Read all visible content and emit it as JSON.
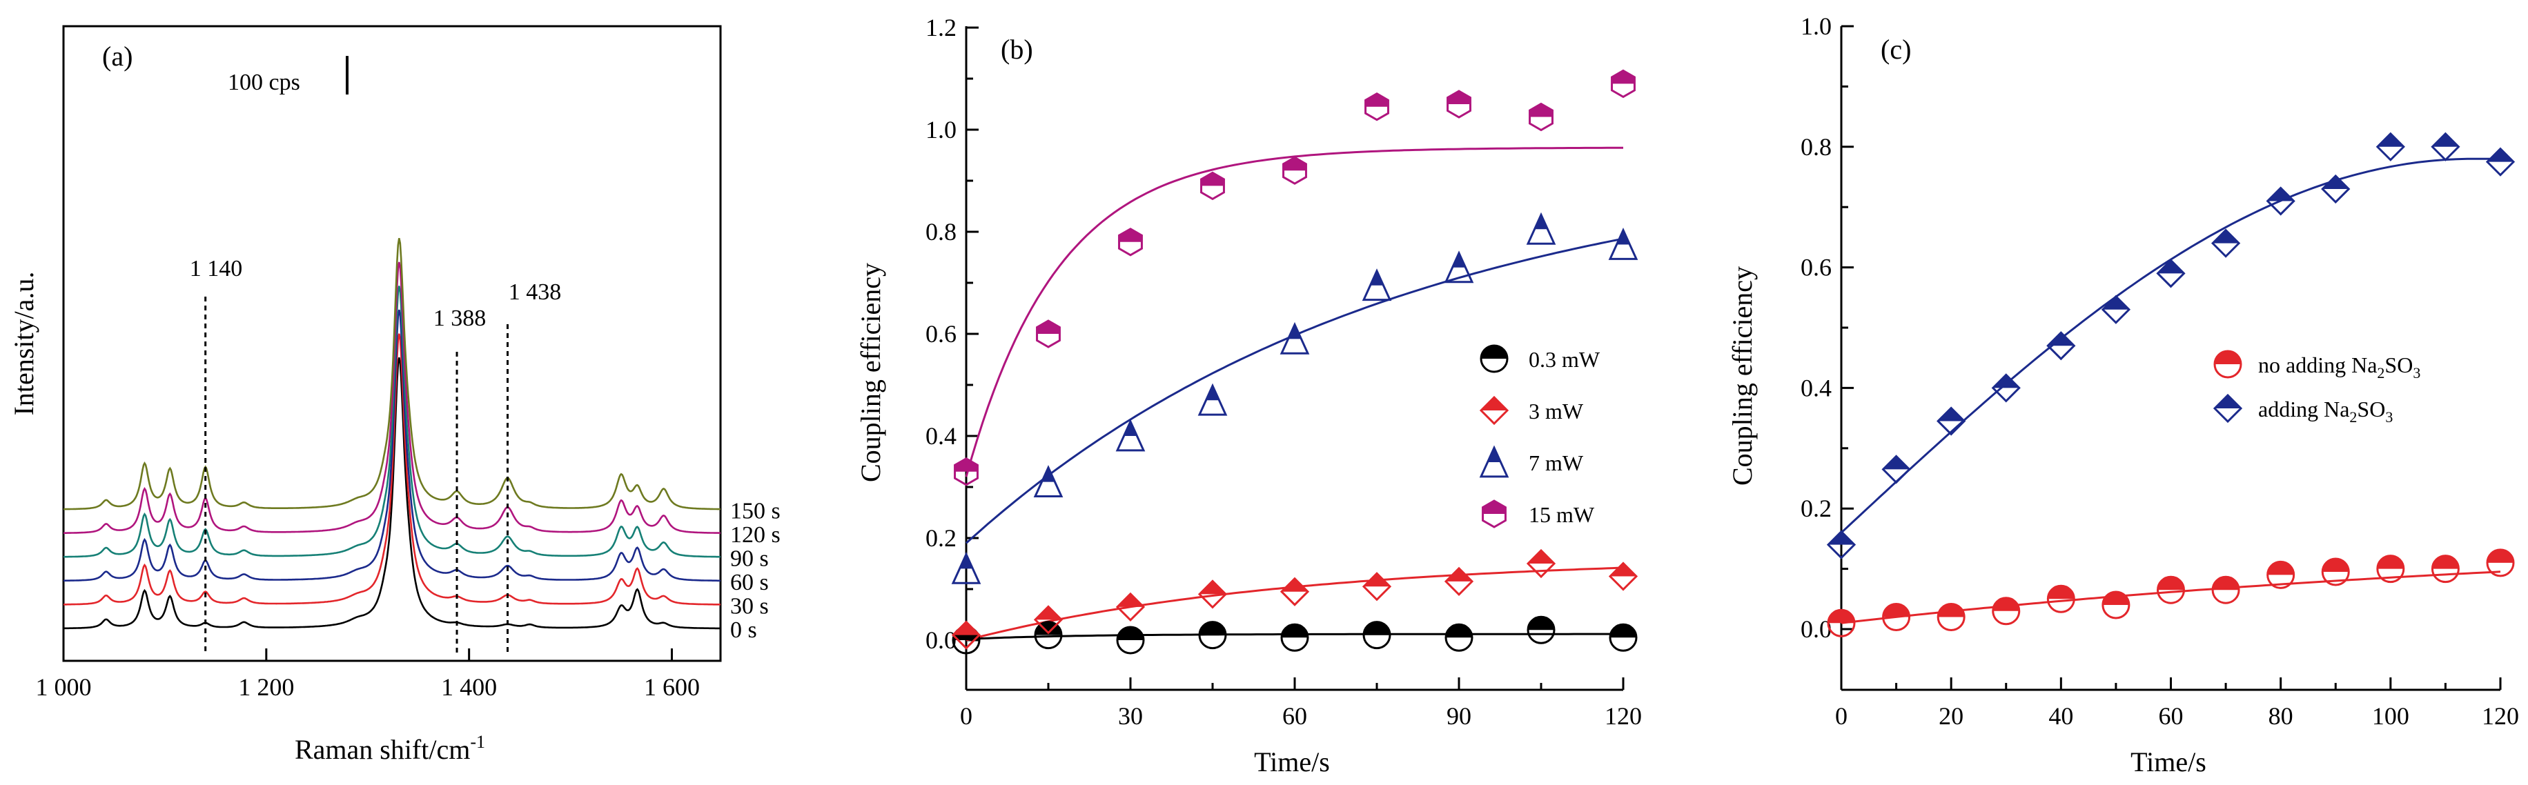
{
  "chart_data": [
    {
      "panel": "(a)",
      "type": "line",
      "xlabel": "Raman shift/cm",
      "xlabel_sup": "-1",
      "ylabel": "Intensity/a.u.",
      "xlim": [
        1000,
        1650
      ],
      "xticks": [
        {
          "v": 1000,
          "label": "1 000"
        },
        {
          "v": 1200,
          "label": "1 200"
        },
        {
          "v": 1400,
          "label": "1 400"
        },
        {
          "v": 1600,
          "label": "1 600"
        }
      ],
      "scale_bar": {
        "label": "100 cps",
        "counts": 100
      },
      "peak_labels": [
        {
          "x": 1140,
          "label": "1 140"
        },
        {
          "x": 1388,
          "label": "1 388"
        },
        {
          "x": 1438,
          "label": "1 438"
        }
      ],
      "series": [
        {
          "label": "0 s",
          "color": "#000000",
          "offset": 0,
          "couple": 0.0
        },
        {
          "label": "30 s",
          "color": "#e3262b",
          "offset": 1,
          "couple": 0.2
        },
        {
          "label": "60 s",
          "color": "#1b2a8c",
          "offset": 2,
          "couple": 0.4
        },
        {
          "label": "90 s",
          "color": "#168076",
          "offset": 3,
          "couple": 0.6
        },
        {
          "label": "120 s",
          "color": "#b0157e",
          "offset": 4,
          "couple": 0.8
        },
        {
          "label": "150 s",
          "color": "#6e7a20",
          "offset": 5,
          "couple": 1.0
        }
      ]
    },
    {
      "panel": "(b)",
      "type": "scatter",
      "xlabel": "Time/s",
      "ylabel": "Coupling efficiency",
      "xlim": [
        0,
        120
      ],
      "ylim": [
        -0.05,
        1.2
      ],
      "xticks": [
        0,
        30,
        60,
        90,
        120
      ],
      "yticks": [
        "0.0",
        "0.2",
        "0.4",
        "0.6",
        "0.8",
        "1.0",
        "1.2"
      ],
      "legend_position": "right",
      "series": [
        {
          "name": "0.3 mW",
          "color": "#000000",
          "marker": "circle-half",
          "x": [
            0,
            15,
            30,
            45,
            60,
            75,
            90,
            105,
            120
          ],
          "y": [
            0.0,
            0.01,
            0.0,
            0.01,
            0.005,
            0.01,
            0.005,
            0.02,
            0.005
          ],
          "fit": {
            "A": 0.012,
            "B": 0.01,
            "k": 0.05
          }
        },
        {
          "name": "3 mW",
          "color": "#e3262b",
          "marker": "diamond-half",
          "x": [
            0,
            15,
            30,
            45,
            60,
            75,
            90,
            105,
            120
          ],
          "y": [
            0.01,
            0.04,
            0.065,
            0.09,
            0.095,
            0.105,
            0.115,
            0.15,
            0.125
          ],
          "fit": {
            "A": 0.163,
            "B": 0.163,
            "k": 0.017
          }
        },
        {
          "name": "7 mW",
          "color": "#1b2a8c",
          "marker": "triangle-half",
          "x": [
            0,
            15,
            30,
            45,
            60,
            75,
            90,
            105,
            120
          ],
          "y": [
            0.14,
            0.31,
            0.4,
            0.47,
            0.59,
            0.695,
            0.73,
            0.805,
            0.775
          ],
          "fit": {
            "A": 0.95,
            "B": 0.76,
            "k": 0.0128
          }
        },
        {
          "name": "15 mW",
          "color": "#b0157e",
          "marker": "hexagon-half",
          "x": [
            0,
            15,
            30,
            45,
            60,
            75,
            90,
            105,
            120
          ],
          "y": [
            0.33,
            0.6,
            0.78,
            0.89,
            0.92,
            1.045,
            1.05,
            1.025,
            1.09
          ],
          "fit": {
            "A": 0.965,
            "B": 0.645,
            "k": 0.06
          }
        }
      ]
    },
    {
      "panel": "(c)",
      "type": "scatter",
      "xlabel": "Time/s",
      "ylabel": "Coupling efficiency",
      "xlim": [
        0,
        120
      ],
      "ylim": [
        -0.05,
        1.0
      ],
      "xticks": [
        0,
        20,
        40,
        60,
        80,
        100,
        120
      ],
      "yticks": [
        "0.0",
        "0.2",
        "0.4",
        "0.6",
        "0.8",
        "1.0"
      ],
      "legend_position": "right",
      "series": [
        {
          "name": "no adding Na",
          "name_sub": "2",
          "name_tail": "SO",
          "name_sub2": "3",
          "color": "#e3262b",
          "marker": "circle-half",
          "x": [
            0,
            10,
            20,
            30,
            40,
            50,
            60,
            70,
            80,
            90,
            100,
            110,
            120
          ],
          "y": [
            0.01,
            0.02,
            0.02,
            0.03,
            0.05,
            0.04,
            0.065,
            0.065,
            0.09,
            0.095,
            0.1,
            0.1,
            0.11
          ],
          "fit": {
            "type": "exp",
            "A": 0.16,
            "B": 0.15,
            "k": 0.007
          }
        },
        {
          "name": "adding Na",
          "name_sub": "2",
          "name_tail": "SO",
          "name_sub2": "3",
          "color": "#1b2a8c",
          "marker": "diamond-half",
          "x": [
            0,
            10,
            20,
            30,
            40,
            50,
            60,
            70,
            80,
            90,
            100,
            110,
            120
          ],
          "y": [
            0.14,
            0.265,
            0.345,
            0.4,
            0.47,
            0.53,
            0.59,
            0.64,
            0.71,
            0.73,
            0.8,
            0.8,
            0.775
          ],
          "fit": {
            "type": "sin",
            "y0": 0.16,
            "ymax": 0.78,
            "xmax": 115
          }
        }
      ]
    }
  ]
}
